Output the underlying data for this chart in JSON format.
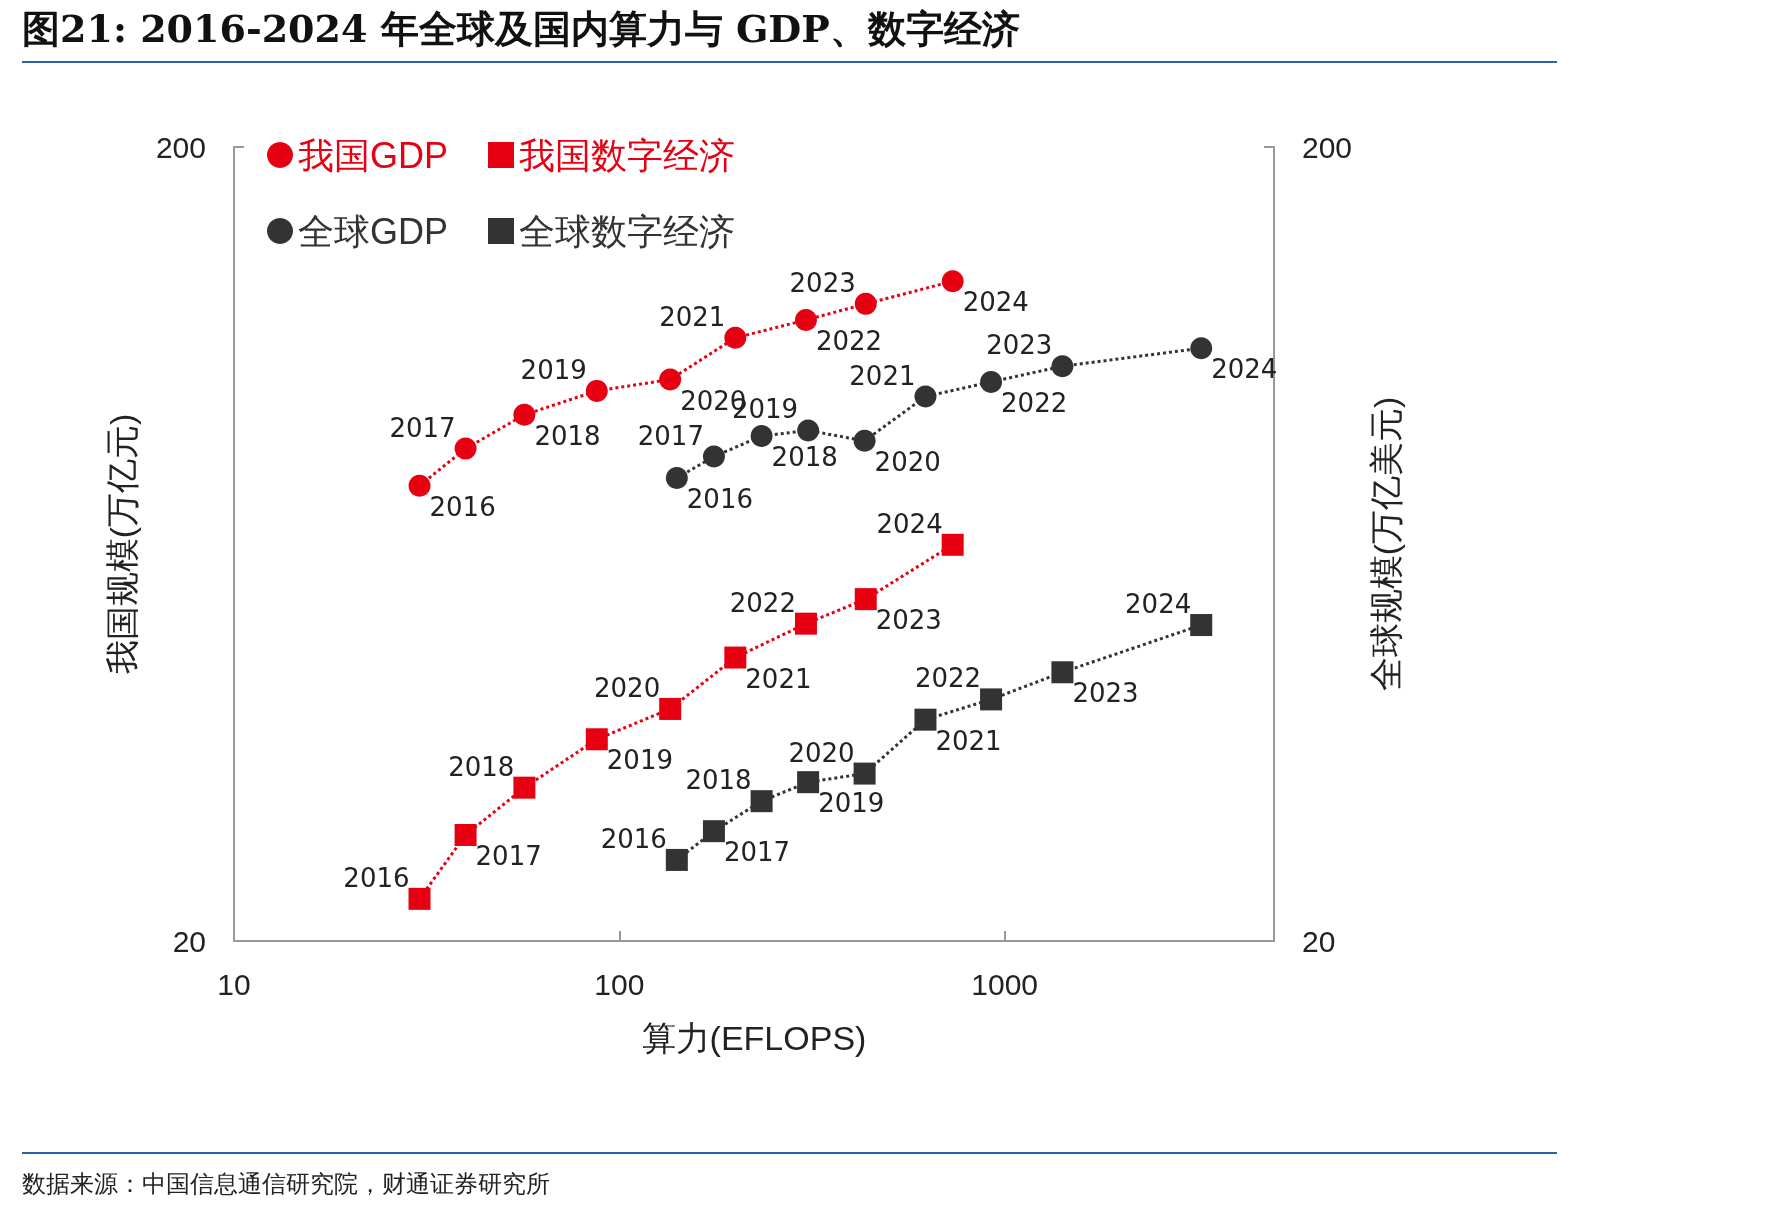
{
  "chart_data": {
    "type": "line",
    "title": "图21: 2016-2024 年全球及国内算力与 GDP、数字经济",
    "xlabel": "算力(EFLOPS)",
    "ylabel": "我国规模(万亿元)",
    "y2label": "全球规模(万亿美元)",
    "annotations": [
      "数据来源：中国信息通信研究院，财通证券研究所",
      {
        "text": "2016",
        "x": 30.3,
        "y": 74.9
      },
      {
        "text": "2017",
        "x": 39.9,
        "y": 83.4
      },
      {
        "text": "2018",
        "x": 56.7,
        "y": 92.0
      },
      {
        "text": "2019",
        "x": 87.4,
        "y": 98.6
      },
      {
        "text": "2020",
        "x": 135.5,
        "y": 101.9
      },
      {
        "text": "2021",
        "x": 200,
        "y": 115.0
      },
      {
        "text": "2022",
        "x": 305,
        "y": 121.1
      },
      {
        "text": "2023",
        "x": 436,
        "y": 126.9
      },
      {
        "text": "2024",
        "x": 733,
        "y": 135.5
      },
      {
        "text": "2016",
        "x": 30.3,
        "y": 22.6
      },
      {
        "text": "2017",
        "x": 39.9,
        "y": 27.2
      },
      {
        "text": "2018",
        "x": 56.7,
        "y": 31.2
      },
      {
        "text": "2019",
        "x": 87.4,
        "y": 35.9
      },
      {
        "text": "2020",
        "x": 135.5,
        "y": 39.2
      },
      {
        "text": "2021",
        "x": 200,
        "y": 45.5
      },
      {
        "text": "2022",
        "x": 305,
        "y": 50.2
      },
      {
        "text": "2023",
        "x": 436,
        "y": 53.9
      },
      {
        "text": "2024",
        "x": 733,
        "y": 63.1
      },
      {
        "text": "2016",
        "x": 141,
        "y": 76.6
      },
      {
        "text": "2017",
        "x": 176,
        "y": 81.5
      },
      {
        "text": "2018",
        "x": 234,
        "y": 86.5
      },
      {
        "text": "2019",
        "x": 309,
        "y": 87.9
      },
      {
        "text": "2020",
        "x": 433,
        "y": 85.3
      },
      {
        "text": "2021",
        "x": 623,
        "y": 97.0
      },
      {
        "text": "2022",
        "x": 922,
        "y": 101.2
      },
      {
        "text": "2023",
        "x": 1412,
        "y": 105.9
      },
      {
        "text": "2024",
        "x": 3237,
        "y": 111.6
      },
      {
        "text": "2016",
        "x": 141,
        "y": 25.3
      },
      {
        "text": "2017",
        "x": 176,
        "y": 27.5
      },
      {
        "text": "2018",
        "x": 234,
        "y": 30.0
      },
      {
        "text": "2019",
        "x": 309,
        "y": 31.7
      },
      {
        "text": "2020",
        "x": 433,
        "y": 32.5
      },
      {
        "text": "2021",
        "x": 623,
        "y": 38.0
      },
      {
        "text": "2022",
        "x": 922,
        "y": 40.3
      },
      {
        "text": "2023",
        "x": 1412,
        "y": 43.6
      },
      {
        "text": "2024",
        "x": 3237,
        "y": 50.0
      }
    ],
    "log": "xy",
    "grid": false,
    "legend": "top left",
    "line_style": "dotted",
    "xlim": [
      10,
      5000
    ],
    "xticks": [
      10,
      100,
      1000
    ],
    "ylim": [
      20,
      200
    ],
    "yticks": [
      20,
      200
    ],
    "y2lim": [
      20,
      200
    ],
    "y2ticks": [
      20,
      200
    ],
    "series": [
      {
        "name": "我国GDP",
        "color": "#e60012",
        "marker": "circle",
        "x": [
          30.3,
          39.9,
          56.7,
          87.4,
          135.5,
          200,
          305,
          436,
          733
        ],
        "values": [
          74.9,
          83.4,
          92.0,
          98.6,
          101.9,
          115.0,
          121.1,
          126.9,
          135.5
        ]
      },
      {
        "name": "我国数字经济",
        "color": "#e60012",
        "marker": "square",
        "x": [
          30.3,
          39.9,
          56.7,
          87.4,
          135.5,
          200,
          305,
          436,
          733
        ],
        "values": [
          22.6,
          27.2,
          31.2,
          35.9,
          39.2,
          45.5,
          50.2,
          53.9,
          63.1
        ]
      },
      {
        "name": "全球GDP",
        "color": "#333333",
        "marker": "circle",
        "x": [
          141,
          176,
          234,
          309,
          433,
          623,
          922,
          1412,
          3237
        ],
        "values": [
          76.6,
          81.5,
          86.5,
          87.9,
          85.3,
          97.0,
          101.2,
          105.9,
          111.6
        ]
      },
      {
        "name": "全球数字经济",
        "color": "#333333",
        "marker": "square",
        "x": [
          141,
          176,
          234,
          309,
          433,
          623,
          922,
          1412,
          3237
        ],
        "values": [
          25.3,
          27.5,
          30.0,
          31.7,
          32.5,
          38.0,
          40.3,
          43.6,
          50.0
        ]
      }
    ]
  }
}
